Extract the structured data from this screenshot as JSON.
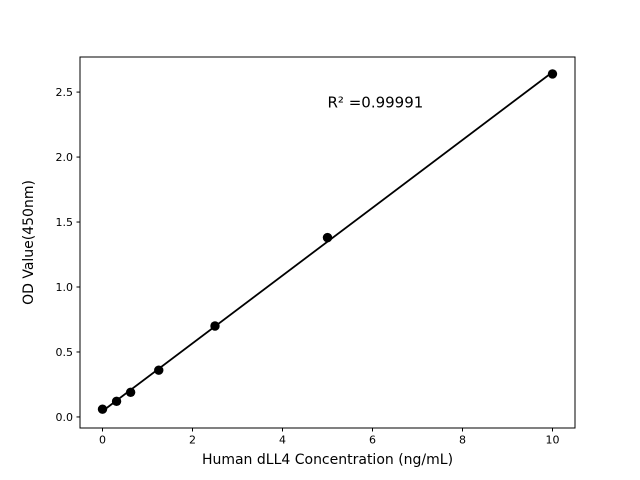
{
  "figure": {
    "background_color": "#ffffff",
    "foreground_color": "#000000"
  },
  "chart_data": {
    "type": "scatter",
    "title": "",
    "xlabel": "Human dLL4 Concentration (ng/mL)",
    "ylabel": "OD Value(450nm)",
    "x": [
      0,
      0.3125,
      0.625,
      1.25,
      2.5,
      5,
      10
    ],
    "y": [
      0.06,
      0.12,
      0.19,
      0.36,
      0.7,
      1.38,
      2.64
    ],
    "fit_line": true,
    "annotation": {
      "text": "R² =0.99991",
      "x": 5.0,
      "y": 2.38
    },
    "xticks": [
      0,
      2,
      4,
      6,
      8,
      10
    ],
    "xtick_labels": [
      "0",
      "2",
      "4",
      "6",
      "8",
      "10"
    ],
    "yticks": [
      0.0,
      0.5,
      1.0,
      1.5,
      2.0,
      2.5
    ],
    "ytick_labels": [
      "0.0",
      "0.5",
      "1.0",
      "1.5",
      "2.0",
      "2.5"
    ],
    "xlim": [
      -0.5,
      10.5
    ],
    "ylim": [
      -0.085,
      2.77
    ],
    "grid": false,
    "legend": null,
    "marker_color": "#000000",
    "line_color": "#000000"
  }
}
